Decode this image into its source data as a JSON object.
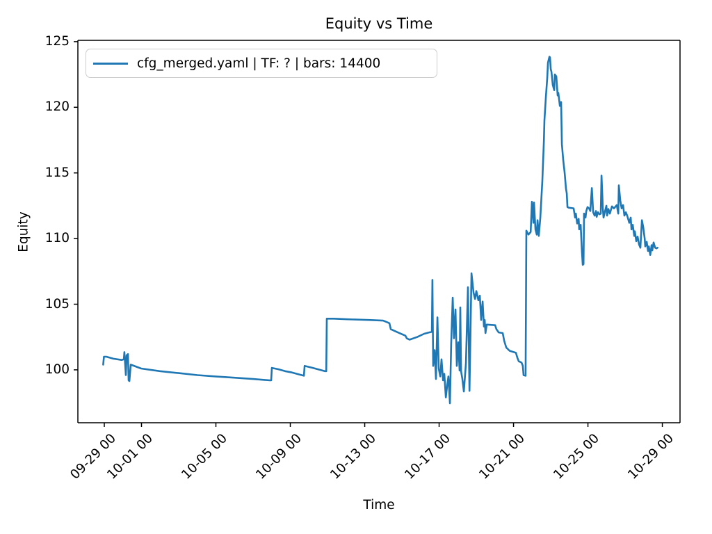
{
  "figure": {
    "title": "Equity vs Time",
    "xlabel": "Time",
    "ylabel": "Equity",
    "legend": {
      "label": "cfg_merged.yaml | TF: ? | bars: 14400"
    },
    "line_color": "#1f77b4",
    "axis_color": "#000000"
  },
  "chart_data": {
    "type": "line",
    "title": "Equity vs Time",
    "xlabel": "Time",
    "ylabel": "Equity",
    "grid": false,
    "legend_position": "upper left",
    "legend_entries": [
      "cfg_merged.yaml | TF: ? | bars: 14400"
    ],
    "x_unit": "days since 09-29 00:00",
    "x_tick_days": [
      0,
      2,
      6,
      10,
      14,
      18,
      22,
      26,
      30
    ],
    "x_tick_labels": [
      "09-29 00",
      "10-01 00",
      "10-05 00",
      "10-09 00",
      "10-13 00",
      "10-17 00",
      "10-21 00",
      "10-25 00",
      "10-29 00"
    ],
    "y_ticks": [
      100,
      105,
      110,
      115,
      120,
      125
    ],
    "xlim_days": [
      -1.42,
      30.95
    ],
    "ylim": [
      95.97,
      125.1
    ],
    "series": [
      {
        "name": "cfg_merged.yaml | TF: ? | bars: 14400",
        "color": "#1f77b4",
        "points": [
          [
            -0.06,
            100.4
          ],
          [
            -0.02,
            101.0
          ],
          [
            0.11,
            101.0
          ],
          [
            0.49,
            100.85
          ],
          [
            0.93,
            100.75
          ],
          [
            1.05,
            100.8
          ],
          [
            1.08,
            101.35
          ],
          [
            1.16,
            99.6
          ],
          [
            1.2,
            101.1
          ],
          [
            1.27,
            101.2
          ],
          [
            1.31,
            99.2
          ],
          [
            1.35,
            99.15
          ],
          [
            1.42,
            100.4
          ],
          [
            1.98,
            100.1
          ],
          [
            2.99,
            99.9
          ],
          [
            4.0,
            99.75
          ],
          [
            5.01,
            99.6
          ],
          [
            5.98,
            99.5
          ],
          [
            6.99,
            99.4
          ],
          [
            8.0,
            99.3
          ],
          [
            8.9,
            99.2
          ],
          [
            8.97,
            99.2
          ],
          [
            9.01,
            100.15
          ],
          [
            9.35,
            100.05
          ],
          [
            9.72,
            99.9
          ],
          [
            10.09,
            99.8
          ],
          [
            10.47,
            99.65
          ],
          [
            10.73,
            99.55
          ],
          [
            10.77,
            100.3
          ],
          [
            11.21,
            100.15
          ],
          [
            11.59,
            100.0
          ],
          [
            11.85,
            99.9
          ],
          [
            11.93,
            99.9
          ],
          [
            11.96,
            103.9
          ],
          [
            12.34,
            103.9
          ],
          [
            13.08,
            103.85
          ],
          [
            14.21,
            103.8
          ],
          [
            14.99,
            103.75
          ],
          [
            15.25,
            103.6
          ],
          [
            15.33,
            103.55
          ],
          [
            15.4,
            103.1
          ],
          [
            15.78,
            102.85
          ],
          [
            16.19,
            102.6
          ],
          [
            16.26,
            102.4
          ],
          [
            16.41,
            102.3
          ],
          [
            16.82,
            102.5
          ],
          [
            17.2,
            102.75
          ],
          [
            17.46,
            102.85
          ],
          [
            17.61,
            102.9
          ],
          [
            17.64,
            106.85
          ],
          [
            17.68,
            100.3
          ],
          [
            17.76,
            101.5
          ],
          [
            17.83,
            99.3
          ],
          [
            17.91,
            104.0
          ],
          [
            17.98,
            100.1
          ],
          [
            18.06,
            99.5
          ],
          [
            18.13,
            100.8
          ],
          [
            18.21,
            99.2
          ],
          [
            18.28,
            99.7
          ],
          [
            18.36,
            97.9
          ],
          [
            18.43,
            98.8
          ],
          [
            18.5,
            99.5
          ],
          [
            18.58,
            97.45
          ],
          [
            18.65,
            102.0
          ],
          [
            18.73,
            105.5
          ],
          [
            18.8,
            102.4
          ],
          [
            18.88,
            104.6
          ],
          [
            18.95,
            100.3
          ],
          [
            19.03,
            102.1
          ],
          [
            19.1,
            99.95
          ],
          [
            19.14,
            104.75
          ],
          [
            19.18,
            99.9
          ],
          [
            19.25,
            99.3
          ],
          [
            19.33,
            98.35
          ],
          [
            19.44,
            100.5
          ],
          [
            19.55,
            106.3
          ],
          [
            19.63,
            98.4
          ],
          [
            19.74,
            107.35
          ],
          [
            19.85,
            105.9
          ],
          [
            19.93,
            105.4
          ],
          [
            20.0,
            106.0
          ],
          [
            20.11,
            105.3
          ],
          [
            20.19,
            105.65
          ],
          [
            20.26,
            103.8
          ],
          [
            20.34,
            105.2
          ],
          [
            20.41,
            103.3
          ],
          [
            20.45,
            103.8
          ],
          [
            20.49,
            102.8
          ],
          [
            20.56,
            103.45
          ],
          [
            21.01,
            103.4
          ],
          [
            21.08,
            103.1
          ],
          [
            21.2,
            102.85
          ],
          [
            21.42,
            102.8
          ],
          [
            21.5,
            102.2
          ],
          [
            21.61,
            101.7
          ],
          [
            21.79,
            101.45
          ],
          [
            22.13,
            101.3
          ],
          [
            22.21,
            100.9
          ],
          [
            22.28,
            100.65
          ],
          [
            22.43,
            100.55
          ],
          [
            22.5,
            100.3
          ],
          [
            22.54,
            99.6
          ],
          [
            22.65,
            99.55
          ],
          [
            22.69,
            110.6
          ],
          [
            22.8,
            110.3
          ],
          [
            22.92,
            110.5
          ],
          [
            22.99,
            112.8
          ],
          [
            23.07,
            111.2
          ],
          [
            23.1,
            112.75
          ],
          [
            23.18,
            110.7
          ],
          [
            23.25,
            110.3
          ],
          [
            23.29,
            111.4
          ],
          [
            23.36,
            110.2
          ],
          [
            23.44,
            111.6
          ],
          [
            23.55,
            114.4
          ],
          [
            23.63,
            117.4
          ],
          [
            23.66,
            119.0
          ],
          [
            23.74,
            120.8
          ],
          [
            23.81,
            122.2
          ],
          [
            23.85,
            123.4
          ],
          [
            23.93,
            123.85
          ],
          [
            23.96,
            123.8
          ],
          [
            24.0,
            122.9
          ],
          [
            24.04,
            122.7
          ],
          [
            24.11,
            121.7
          ],
          [
            24.19,
            121.3
          ],
          [
            24.22,
            122.5
          ],
          [
            24.3,
            122.35
          ],
          [
            24.37,
            120.9
          ],
          [
            24.41,
            121.1
          ],
          [
            24.49,
            120.1
          ],
          [
            24.56,
            120.4
          ],
          [
            24.6,
            117.2
          ],
          [
            24.67,
            116.0
          ],
          [
            24.75,
            115.0
          ],
          [
            24.82,
            113.8
          ],
          [
            24.86,
            113.45
          ],
          [
            24.9,
            112.4
          ],
          [
            24.97,
            112.35
          ],
          [
            25.23,
            112.3
          ],
          [
            25.31,
            111.6
          ],
          [
            25.35,
            111.9
          ],
          [
            25.42,
            111.15
          ],
          [
            25.5,
            111.5
          ],
          [
            25.53,
            110.7
          ],
          [
            25.61,
            111.05
          ],
          [
            25.68,
            108.95
          ],
          [
            25.72,
            108.0
          ],
          [
            25.76,
            108.05
          ],
          [
            25.79,
            111.9
          ],
          [
            25.87,
            111.6
          ],
          [
            25.91,
            112.1
          ],
          [
            25.98,
            112.4
          ],
          [
            26.06,
            112.3
          ],
          [
            26.13,
            112.1
          ],
          [
            26.21,
            113.85
          ],
          [
            26.28,
            112.0
          ],
          [
            26.36,
            111.75
          ],
          [
            26.43,
            112.1
          ],
          [
            26.47,
            111.65
          ],
          [
            26.54,
            112.0
          ],
          [
            26.62,
            111.85
          ],
          [
            26.69,
            111.9
          ],
          [
            26.73,
            114.8
          ],
          [
            26.8,
            112.3
          ],
          [
            26.84,
            111.6
          ],
          [
            26.92,
            112.1
          ],
          [
            26.99,
            112.5
          ],
          [
            27.03,
            111.75
          ],
          [
            27.1,
            112.25
          ],
          [
            27.18,
            111.9
          ],
          [
            27.29,
            112.45
          ],
          [
            27.4,
            112.3
          ],
          [
            27.55,
            112.55
          ],
          [
            27.63,
            111.9
          ],
          [
            27.66,
            114.05
          ],
          [
            27.74,
            112.9
          ],
          [
            27.81,
            112.3
          ],
          [
            27.89,
            112.55
          ],
          [
            27.96,
            111.75
          ],
          [
            28.04,
            112.0
          ],
          [
            28.11,
            111.75
          ],
          [
            28.22,
            111.2
          ],
          [
            28.3,
            111.6
          ],
          [
            28.34,
            110.7
          ],
          [
            28.41,
            111.05
          ],
          [
            28.49,
            110.2
          ],
          [
            28.52,
            110.55
          ],
          [
            28.6,
            109.8
          ],
          [
            28.67,
            110.15
          ],
          [
            28.75,
            109.55
          ],
          [
            28.82,
            109.3
          ],
          [
            28.9,
            111.4
          ],
          [
            28.97,
            110.9
          ],
          [
            29.05,
            110.0
          ],
          [
            29.08,
            109.4
          ],
          [
            29.16,
            109.75
          ],
          [
            29.23,
            109.05
          ],
          [
            29.27,
            109.4
          ],
          [
            29.35,
            108.75
          ],
          [
            29.42,
            109.5
          ],
          [
            29.46,
            109.1
          ],
          [
            29.53,
            109.7
          ],
          [
            29.61,
            109.3
          ],
          [
            29.68,
            109.25
          ],
          [
            29.74,
            109.3
          ]
        ]
      }
    ]
  }
}
